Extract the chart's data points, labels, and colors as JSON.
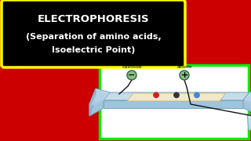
{
  "bg_color": "#cc0000",
  "title_box_bg": "#000000",
  "title_box_edge": "#ffff00",
  "title_line1": "ELECTROPHORESIS",
  "title_line2": "(Separation of amino acids,",
  "title_line3": "Isoelectric Point)",
  "title_color": "#ffffff",
  "diagram_box_edge": "#00ee00",
  "diagram_box_bg": "#ffffff",
  "cathode_label": "cathode",
  "anode_label": "anode",
  "cathode_sign": "−",
  "anode_sign": "+",
  "dot_colors": [
    "#cc2222",
    "#333333",
    "#4488cc"
  ],
  "tray_top_color": "#c8dce8",
  "tray_front_color": "#a0c4dc",
  "tray_side_color": "#90b8d0",
  "gel_color": "#f0e8c8",
  "water_color": "#b0cfe8",
  "electrode_color": "#88bb88",
  "electrode_edge": "#336633",
  "wire_color": "#111111",
  "cup_color": "#c8dce8",
  "cup_highlight": "#e0eef8"
}
